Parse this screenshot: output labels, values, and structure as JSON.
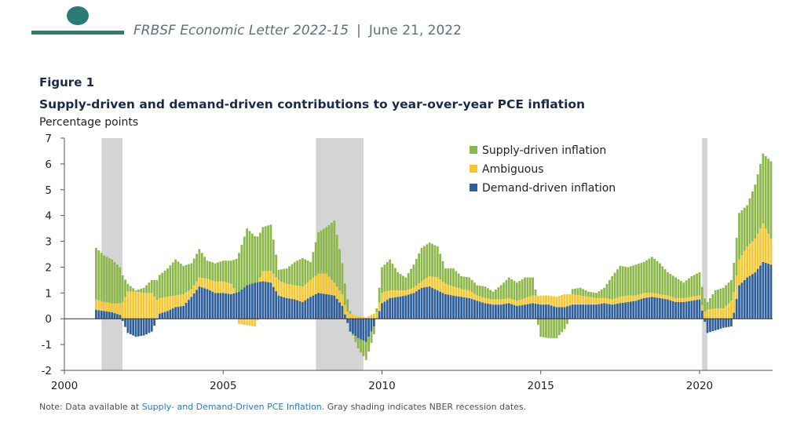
{
  "header": {
    "publication": "FRBSF Economic Letter 2022-15",
    "separator": "|",
    "date": "June 21, 2022"
  },
  "figure": {
    "label": "Figure 1",
    "title": "Supply-driven and demand-driven contributions to year-over-year PCE inflation",
    "units": "Percentage points"
  },
  "note": {
    "prefix": "Note: Data available at ",
    "link": "Supply- and Demand-Driven PCE Inflation",
    "suffix": ". Gray shading indicates NBER recession dates."
  },
  "colors": {
    "supply": "#8cb84a",
    "ambiguous": "#f5c731",
    "demand": "#2e5f9a",
    "recession": "#d4d4d4",
    "brand": "#2a7a75"
  },
  "chart_data": {
    "type": "bar",
    "stacked": true,
    "frequency": "monthly",
    "ylabel": "Percentage points",
    "ylim": [
      -2,
      7
    ],
    "yticks": [
      -2,
      -1,
      0,
      1,
      2,
      3,
      4,
      5,
      6,
      7
    ],
    "xlim": [
      2000.0,
      2022.3
    ],
    "xticks": [
      2000,
      2005,
      2010,
      2015,
      2020
    ],
    "legend_position": "top-right",
    "legend": [
      "Supply-driven inflation",
      "Ambiguous",
      "Demand-driven inflation"
    ],
    "recessions": [
      [
        2001.17,
        2001.83
      ],
      [
        2007.92,
        2009.42
      ],
      [
        2020.08,
        2020.25
      ]
    ],
    "anchors_note": "Quarterly approximations read from chart; monthly values interpolated.",
    "series": [
      {
        "name": "Demand-driven inflation",
        "key": "demand",
        "x": [
          2001.0,
          2001.25,
          2001.5,
          2001.75,
          2002.0,
          2002.25,
          2002.5,
          2002.75,
          2003.0,
          2003.25,
          2003.5,
          2003.75,
          2004.0,
          2004.25,
          2004.5,
          2004.75,
          2005.0,
          2005.25,
          2005.5,
          2005.75,
          2006.0,
          2006.25,
          2006.5,
          2006.75,
          2007.0,
          2007.25,
          2007.5,
          2007.75,
          2008.0,
          2008.25,
          2008.5,
          2008.75,
          2009.0,
          2009.25,
          2009.5,
          2009.75,
          2010.0,
          2010.25,
          2010.5,
          2010.75,
          2011.0,
          2011.25,
          2011.5,
          2011.75,
          2012.0,
          2012.25,
          2012.5,
          2012.75,
          2013.0,
          2013.25,
          2013.5,
          2013.75,
          2014.0,
          2014.25,
          2014.5,
          2014.75,
          2015.0,
          2015.25,
          2015.5,
          2015.75,
          2016.0,
          2016.25,
          2016.5,
          2016.75,
          2017.0,
          2017.25,
          2017.5,
          2017.75,
          2018.0,
          2018.25,
          2018.5,
          2018.75,
          2019.0,
          2019.25,
          2019.5,
          2019.75,
          2020.0,
          2020.25,
          2020.5,
          2020.75,
          2021.0,
          2021.25,
          2021.5,
          2021.75,
          2022.0,
          2022.25
        ],
        "values": [
          0.35,
          0.3,
          0.25,
          0.15,
          -0.55,
          -0.7,
          -0.65,
          -0.5,
          0.2,
          0.3,
          0.45,
          0.5,
          0.85,
          1.25,
          1.15,
          1.0,
          1.0,
          0.95,
          1.05,
          1.3,
          1.4,
          1.45,
          1.4,
          0.9,
          0.8,
          0.75,
          0.65,
          0.85,
          1.0,
          0.95,
          0.9,
          0.5,
          -0.5,
          -0.75,
          -0.9,
          -0.3,
          0.6,
          0.8,
          0.85,
          0.9,
          1.0,
          1.2,
          1.25,
          1.1,
          0.95,
          0.9,
          0.85,
          0.8,
          0.7,
          0.6,
          0.55,
          0.55,
          0.6,
          0.5,
          0.55,
          0.6,
          0.55,
          0.55,
          0.45,
          0.45,
          0.55,
          0.55,
          0.55,
          0.55,
          0.6,
          0.55,
          0.6,
          0.65,
          0.7,
          0.8,
          0.85,
          0.8,
          0.75,
          0.65,
          0.65,
          0.7,
          0.75,
          -0.55,
          -0.45,
          -0.35,
          -0.3,
          1.3,
          1.6,
          1.8,
          2.2,
          2.1
        ]
      },
      {
        "name": "Ambiguous",
        "key": "ambiguous",
        "x": [
          2001.0,
          2001.25,
          2001.5,
          2001.75,
          2002.0,
          2002.25,
          2002.5,
          2002.75,
          2003.0,
          2003.25,
          2003.5,
          2003.75,
          2004.0,
          2004.25,
          2004.5,
          2004.75,
          2005.0,
          2005.25,
          2005.5,
          2005.75,
          2006.0,
          2006.25,
          2006.5,
          2006.75,
          2007.0,
          2007.25,
          2007.5,
          2007.75,
          2008.0,
          2008.25,
          2008.5,
          2008.75,
          2009.0,
          2009.25,
          2009.5,
          2009.75,
          2010.0,
          2010.25,
          2010.5,
          2010.75,
          2011.0,
          2011.25,
          2011.5,
          2011.75,
          2012.0,
          2012.25,
          2012.5,
          2012.75,
          2013.0,
          2013.25,
          2013.5,
          2013.75,
          2014.0,
          2014.25,
          2014.5,
          2014.75,
          2015.0,
          2015.25,
          2015.5,
          2015.75,
          2016.0,
          2016.25,
          2016.5,
          2016.75,
          2017.0,
          2017.25,
          2017.5,
          2017.75,
          2018.0,
          2018.25,
          2018.5,
          2018.75,
          2019.0,
          2019.25,
          2019.5,
          2019.75,
          2020.0,
          2020.25,
          2020.5,
          2020.75,
          2021.0,
          2021.25,
          2021.5,
          2021.75,
          2022.0,
          2022.25
        ],
        "values": [
          0.4,
          0.35,
          0.35,
          0.45,
          1.05,
          1.05,
          1.0,
          1.0,
          0.6,
          0.55,
          0.45,
          0.45,
          0.3,
          0.35,
          0.4,
          0.45,
          0.45,
          0.4,
          -0.2,
          -0.25,
          -0.3,
          0.4,
          0.45,
          0.6,
          0.55,
          0.55,
          0.6,
          0.65,
          0.75,
          0.8,
          0.5,
          0.45,
          0.2,
          0.1,
          0.05,
          0.2,
          0.4,
          0.3,
          0.25,
          0.2,
          0.2,
          0.25,
          0.4,
          0.5,
          0.4,
          0.35,
          0.3,
          0.3,
          0.2,
          0.2,
          0.2,
          0.2,
          0.2,
          0.2,
          0.25,
          0.3,
          0.35,
          0.35,
          0.4,
          0.5,
          0.4,
          0.35,
          0.3,
          0.25,
          0.2,
          0.2,
          0.25,
          0.25,
          0.2,
          0.2,
          0.15,
          0.15,
          0.15,
          0.15,
          0.15,
          0.15,
          0.15,
          0.35,
          0.4,
          0.4,
          0.7,
          1.0,
          1.2,
          1.3,
          1.5,
          1.0
        ]
      },
      {
        "name": "Supply-driven inflation",
        "key": "supply",
        "x": [
          2001.0,
          2001.25,
          2001.5,
          2001.75,
          2002.0,
          2002.25,
          2002.5,
          2002.75,
          2003.0,
          2003.25,
          2003.5,
          2003.75,
          2004.0,
          2004.25,
          2004.5,
          2004.75,
          2005.0,
          2005.25,
          2005.5,
          2005.75,
          2006.0,
          2006.25,
          2006.5,
          2006.75,
          2007.0,
          2007.25,
          2007.5,
          2007.75,
          2008.0,
          2008.25,
          2008.5,
          2008.75,
          2009.0,
          2009.25,
          2009.5,
          2009.75,
          2010.0,
          2010.25,
          2010.5,
          2010.75,
          2011.0,
          2011.25,
          2011.5,
          2011.75,
          2012.0,
          2012.25,
          2012.5,
          2012.75,
          2013.0,
          2013.25,
          2013.5,
          2013.75,
          2014.0,
          2014.25,
          2014.5,
          2014.75,
          2015.0,
          2015.25,
          2015.5,
          2015.75,
          2016.0,
          2016.25,
          2016.5,
          2016.75,
          2017.0,
          2017.25,
          2017.5,
          2017.75,
          2018.0,
          2018.25,
          2018.5,
          2018.75,
          2019.0,
          2019.25,
          2019.5,
          2019.75,
          2020.0,
          2020.25,
          2020.5,
          2020.75,
          2021.0,
          2021.25,
          2021.5,
          2021.75,
          2022.0,
          2022.25
        ],
        "values": [
          2.0,
          1.8,
          1.7,
          1.4,
          0.3,
          0.05,
          0.2,
          0.5,
          0.9,
          1.1,
          1.4,
          1.1,
          1.0,
          1.1,
          0.7,
          0.7,
          0.8,
          0.9,
          1.5,
          2.2,
          1.8,
          1.7,
          1.8,
          0.4,
          0.6,
          0.9,
          1.1,
          0.7,
          1.6,
          1.8,
          2.4,
          1.2,
          0.1,
          -0.4,
          -0.7,
          -0.3,
          1.0,
          1.2,
          0.7,
          0.5,
          0.9,
          1.3,
          1.3,
          1.2,
          0.6,
          0.7,
          0.5,
          0.5,
          0.4,
          0.45,
          0.3,
          0.55,
          0.8,
          0.7,
          0.8,
          0.7,
          -0.7,
          -0.75,
          -0.75,
          -0.4,
          0.2,
          0.3,
          0.2,
          0.2,
          0.4,
          0.9,
          1.2,
          1.1,
          1.2,
          1.2,
          1.4,
          1.2,
          0.9,
          0.8,
          0.6,
          0.8,
          0.9,
          0.3,
          0.7,
          0.8,
          0.8,
          1.8,
          1.6,
          2.1,
          2.7,
          3.0
        ]
      }
    ]
  }
}
